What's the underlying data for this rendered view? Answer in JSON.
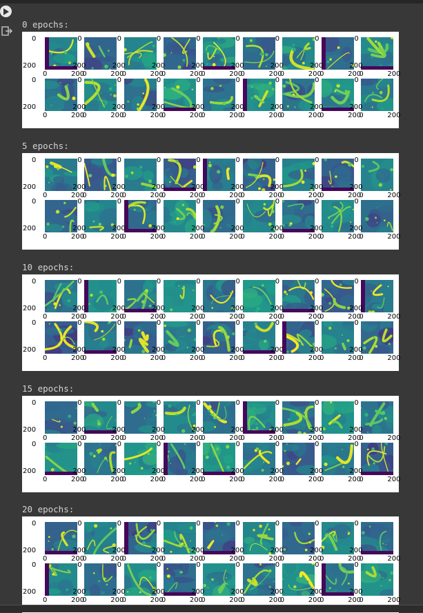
{
  "toolbar": {
    "run_label": "run-cell"
  },
  "output": {
    "icon": "output-redirect-icon"
  },
  "colors": {
    "viridis_low": "#440154",
    "viridis_mid": "#21918c",
    "viridis_high": "#fde725",
    "dark_bg": "#383838"
  },
  "axis_ticks": {
    "zero": "0",
    "two_hundred": "200"
  },
  "sections": [
    {
      "label": "0 epochs:"
    },
    {
      "label": "5 epochs:"
    },
    {
      "label": "10 epochs:"
    },
    {
      "label": "15 epochs:"
    },
    {
      "label": "20 epochs:"
    }
  ]
}
